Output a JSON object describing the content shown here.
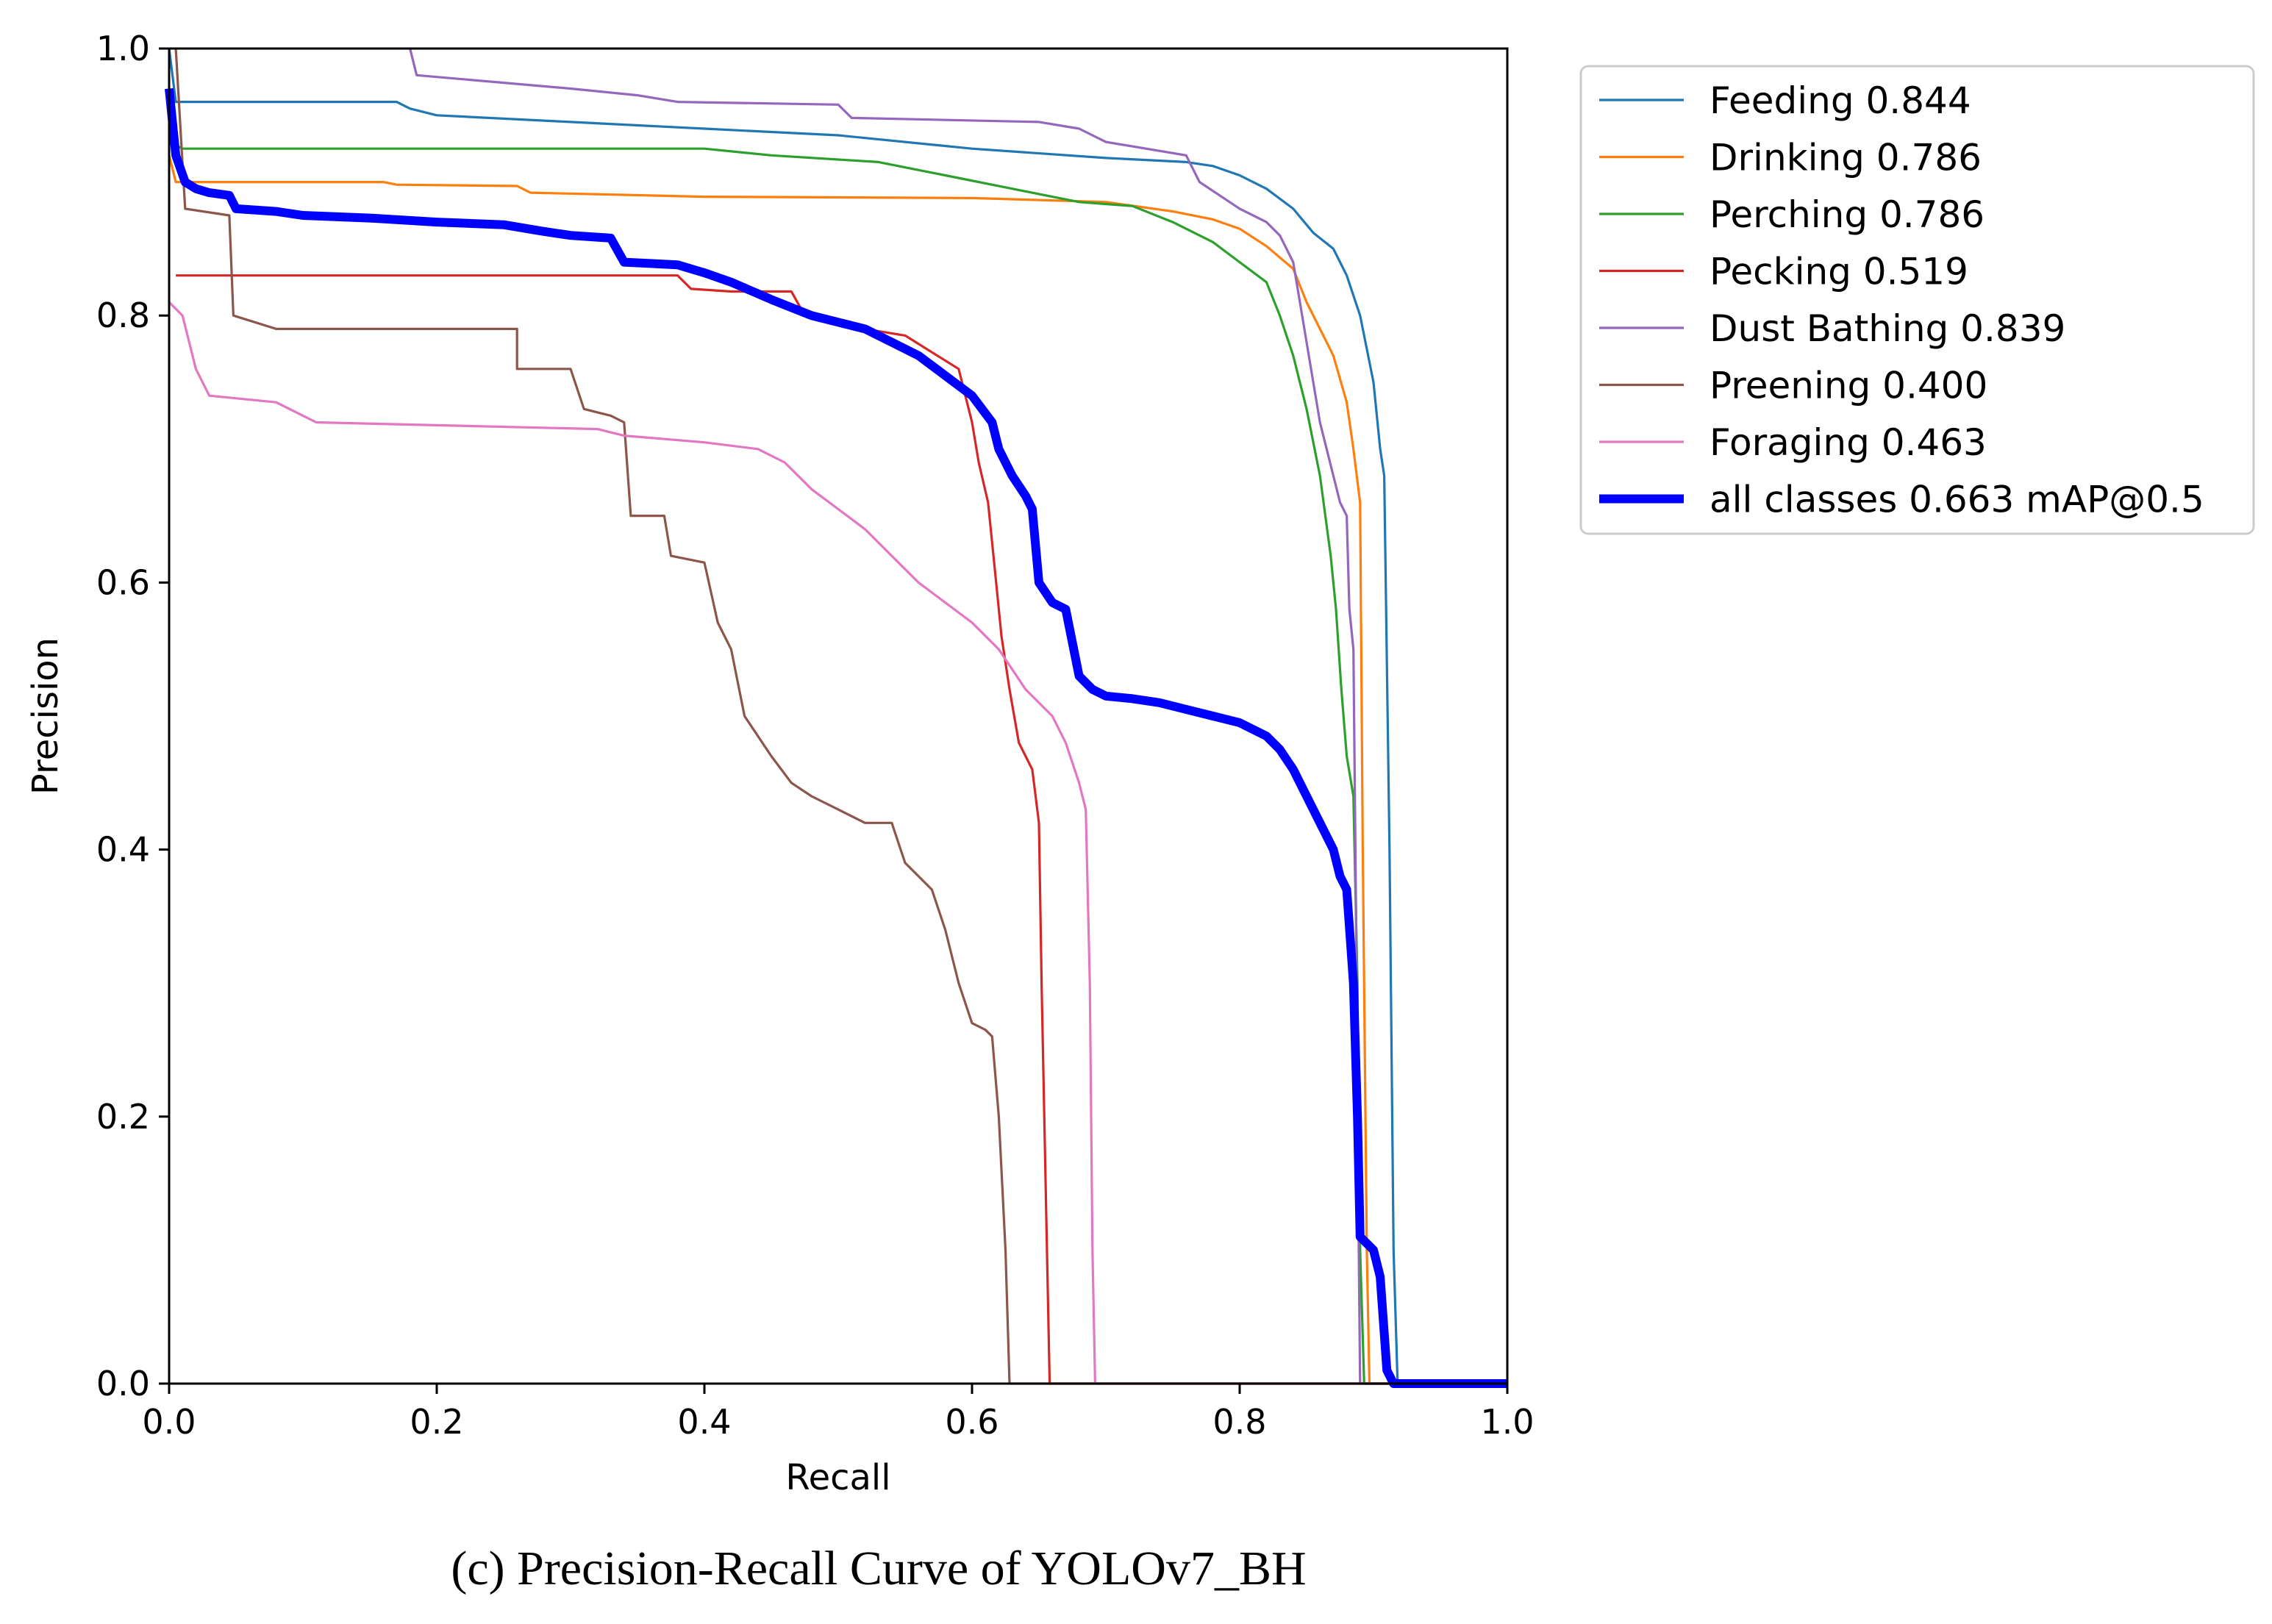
{
  "caption": "(c) Precision-Recall Curve of YOLOv7_BH",
  "chart_data": {
    "type": "line",
    "title": "",
    "xlabel": "Recall",
    "ylabel": "Precision",
    "xlim": [
      0,
      1
    ],
    "ylim": [
      0,
      1
    ],
    "xticks": [
      "0.0",
      "0.2",
      "0.4",
      "0.6",
      "0.8",
      "1.0"
    ],
    "yticks": [
      "0.0",
      "0.2",
      "0.4",
      "0.6",
      "0.8",
      "1.0"
    ],
    "grid": false,
    "legend_position": "outside-top-right",
    "series": [
      {
        "name": "Feeding",
        "score": "0.844",
        "label": "Feeding 0.844",
        "color": "#1f77b4",
        "bold": false,
        "points": [
          [
            0,
            1.0
          ],
          [
            0.005,
            0.96
          ],
          [
            0.17,
            0.96
          ],
          [
            0.18,
            0.955
          ],
          [
            0.2,
            0.95
          ],
          [
            0.3,
            0.945
          ],
          [
            0.4,
            0.94
          ],
          [
            0.5,
            0.935
          ],
          [
            0.6,
            0.925
          ],
          [
            0.7,
            0.918
          ],
          [
            0.76,
            0.915
          ],
          [
            0.78,
            0.912
          ],
          [
            0.8,
            0.905
          ],
          [
            0.82,
            0.895
          ],
          [
            0.84,
            0.88
          ],
          [
            0.855,
            0.862
          ],
          [
            0.87,
            0.85
          ],
          [
            0.88,
            0.83
          ],
          [
            0.89,
            0.8
          ],
          [
            0.9,
            0.75
          ],
          [
            0.905,
            0.7
          ],
          [
            0.908,
            0.68
          ],
          [
            0.912,
            0.4
          ],
          [
            0.915,
            0.1
          ],
          [
            0.918,
            0.0
          ],
          [
            1.0,
            0.0
          ]
        ]
      },
      {
        "name": "Drinking",
        "score": "0.786",
        "label": "Drinking 0.786",
        "color": "#ff7f0e",
        "bold": false,
        "points": [
          [
            0,
            0.92
          ],
          [
            0.005,
            0.9
          ],
          [
            0.16,
            0.9
          ],
          [
            0.17,
            0.898
          ],
          [
            0.26,
            0.897
          ],
          [
            0.27,
            0.892
          ],
          [
            0.4,
            0.889
          ],
          [
            0.6,
            0.888
          ],
          [
            0.7,
            0.885
          ],
          [
            0.75,
            0.878
          ],
          [
            0.78,
            0.872
          ],
          [
            0.8,
            0.865
          ],
          [
            0.82,
            0.852
          ],
          [
            0.84,
            0.835
          ],
          [
            0.85,
            0.81
          ],
          [
            0.86,
            0.79
          ],
          [
            0.87,
            0.77
          ],
          [
            0.88,
            0.735
          ],
          [
            0.885,
            0.7
          ],
          [
            0.89,
            0.66
          ],
          [
            0.892,
            0.4
          ],
          [
            0.895,
            0.1
          ],
          [
            0.897,
            0.0
          ],
          [
            1.0,
            0.0
          ]
        ]
      },
      {
        "name": "Perching",
        "score": "0.786",
        "label": "Perching 0.786",
        "color": "#2ca02c",
        "bold": false,
        "points": [
          [
            0,
            0.93
          ],
          [
            0.01,
            0.925
          ],
          [
            0.4,
            0.925
          ],
          [
            0.45,
            0.92
          ],
          [
            0.53,
            0.915
          ],
          [
            0.58,
            0.905
          ],
          [
            0.63,
            0.895
          ],
          [
            0.68,
            0.885
          ],
          [
            0.72,
            0.882
          ],
          [
            0.75,
            0.87
          ],
          [
            0.78,
            0.855
          ],
          [
            0.8,
            0.84
          ],
          [
            0.82,
            0.825
          ],
          [
            0.83,
            0.8
          ],
          [
            0.84,
            0.77
          ],
          [
            0.85,
            0.73
          ],
          [
            0.86,
            0.68
          ],
          [
            0.868,
            0.62
          ],
          [
            0.872,
            0.58
          ],
          [
            0.876,
            0.52
          ],
          [
            0.88,
            0.47
          ],
          [
            0.885,
            0.44
          ],
          [
            0.888,
            0.3
          ],
          [
            0.89,
            0.1
          ],
          [
            0.893,
            0.0
          ],
          [
            1.0,
            0.0
          ]
        ]
      },
      {
        "name": "Pecking",
        "score": "0.519",
        "label": "Pecking 0.519",
        "color": "#d62728",
        "bold": false,
        "points": [
          [
            0.005,
            0.83
          ],
          [
            0.38,
            0.83
          ],
          [
            0.39,
            0.82
          ],
          [
            0.42,
            0.818
          ],
          [
            0.465,
            0.818
          ],
          [
            0.475,
            0.8
          ],
          [
            0.52,
            0.79
          ],
          [
            0.55,
            0.785
          ],
          [
            0.59,
            0.76
          ],
          [
            0.595,
            0.74
          ],
          [
            0.6,
            0.72
          ],
          [
            0.605,
            0.69
          ],
          [
            0.612,
            0.66
          ],
          [
            0.618,
            0.6
          ],
          [
            0.622,
            0.56
          ],
          [
            0.628,
            0.52
          ],
          [
            0.635,
            0.48
          ],
          [
            0.645,
            0.46
          ],
          [
            0.65,
            0.42
          ],
          [
            0.652,
            0.3
          ],
          [
            0.656,
            0.1
          ],
          [
            0.658,
            0.0
          ],
          [
            1.0,
            0.0
          ]
        ]
      },
      {
        "name": "Dust Bathing",
        "score": "0.839",
        "label": "Dust Bathing 0.839",
        "color": "#9467bd",
        "bold": false,
        "points": [
          [
            0.18,
            1.0
          ],
          [
            0.185,
            0.98
          ],
          [
            0.3,
            0.97
          ],
          [
            0.35,
            0.965
          ],
          [
            0.38,
            0.96
          ],
          [
            0.5,
            0.958
          ],
          [
            0.51,
            0.948
          ],
          [
            0.65,
            0.945
          ],
          [
            0.68,
            0.94
          ],
          [
            0.7,
            0.93
          ],
          [
            0.76,
            0.92
          ],
          [
            0.77,
            0.9
          ],
          [
            0.8,
            0.88
          ],
          [
            0.82,
            0.87
          ],
          [
            0.83,
            0.86
          ],
          [
            0.84,
            0.84
          ],
          [
            0.845,
            0.81
          ],
          [
            0.85,
            0.78
          ],
          [
            0.855,
            0.75
          ],
          [
            0.86,
            0.72
          ],
          [
            0.865,
            0.7
          ],
          [
            0.87,
            0.68
          ],
          [
            0.875,
            0.66
          ],
          [
            0.88,
            0.65
          ],
          [
            0.882,
            0.58
          ],
          [
            0.885,
            0.55
          ],
          [
            0.887,
            0.35
          ],
          [
            0.889,
            0.1
          ],
          [
            0.89,
            0.0
          ],
          [
            1.0,
            0.0
          ]
        ]
      },
      {
        "name": "Preening",
        "score": "0.400",
        "label": "Preening 0.400",
        "color": "#8c564b",
        "bold": false,
        "points": [
          [
            0.005,
            1.0
          ],
          [
            0.012,
            0.88
          ],
          [
            0.045,
            0.875
          ],
          [
            0.048,
            0.8
          ],
          [
            0.08,
            0.79
          ],
          [
            0.26,
            0.79
          ],
          [
            0.26,
            0.76
          ],
          [
            0.3,
            0.76
          ],
          [
            0.31,
            0.73
          ],
          [
            0.33,
            0.725
          ],
          [
            0.34,
            0.72
          ],
          [
            0.345,
            0.65
          ],
          [
            0.37,
            0.65
          ],
          [
            0.375,
            0.62
          ],
          [
            0.4,
            0.615
          ],
          [
            0.41,
            0.57
          ],
          [
            0.42,
            0.55
          ],
          [
            0.43,
            0.5
          ],
          [
            0.45,
            0.47
          ],
          [
            0.465,
            0.45
          ],
          [
            0.48,
            0.44
          ],
          [
            0.5,
            0.43
          ],
          [
            0.52,
            0.42
          ],
          [
            0.54,
            0.42
          ],
          [
            0.55,
            0.39
          ],
          [
            0.56,
            0.38
          ],
          [
            0.57,
            0.37
          ],
          [
            0.58,
            0.34
          ],
          [
            0.59,
            0.3
          ],
          [
            0.6,
            0.27
          ],
          [
            0.61,
            0.265
          ],
          [
            0.615,
            0.26
          ],
          [
            0.62,
            0.2
          ],
          [
            0.625,
            0.1
          ],
          [
            0.628,
            0.0
          ],
          [
            1.0,
            0.0
          ]
        ]
      },
      {
        "name": "Foraging",
        "score": "0.463",
        "label": "Foraging 0.463",
        "color": "#e377c2",
        "bold": false,
        "points": [
          [
            0.0,
            0.81
          ],
          [
            0.01,
            0.8
          ],
          [
            0.02,
            0.76
          ],
          [
            0.03,
            0.74
          ],
          [
            0.08,
            0.735
          ],
          [
            0.1,
            0.725
          ],
          [
            0.11,
            0.72
          ],
          [
            0.32,
            0.715
          ],
          [
            0.34,
            0.71
          ],
          [
            0.4,
            0.705
          ],
          [
            0.44,
            0.7
          ],
          [
            0.46,
            0.69
          ],
          [
            0.48,
            0.67
          ],
          [
            0.5,
            0.655
          ],
          [
            0.52,
            0.64
          ],
          [
            0.54,
            0.62
          ],
          [
            0.56,
            0.6
          ],
          [
            0.58,
            0.585
          ],
          [
            0.6,
            0.57
          ],
          [
            0.62,
            0.55
          ],
          [
            0.64,
            0.52
          ],
          [
            0.66,
            0.5
          ],
          [
            0.67,
            0.48
          ],
          [
            0.68,
            0.45
          ],
          [
            0.685,
            0.43
          ],
          [
            0.688,
            0.3
          ],
          [
            0.69,
            0.1
          ],
          [
            0.692,
            0.0
          ],
          [
            1.0,
            0.0
          ]
        ]
      },
      {
        "name": "all classes",
        "score": "0.663",
        "label": "all classes 0.663 mAP@0.5",
        "color": "#0000ff",
        "bold": true,
        "points": [
          [
            0.0,
            0.97
          ],
          [
            0.005,
            0.92
          ],
          [
            0.012,
            0.9
          ],
          [
            0.02,
            0.895
          ],
          [
            0.03,
            0.892
          ],
          [
            0.045,
            0.89
          ],
          [
            0.05,
            0.88
          ],
          [
            0.08,
            0.878
          ],
          [
            0.1,
            0.875
          ],
          [
            0.15,
            0.873
          ],
          [
            0.2,
            0.87
          ],
          [
            0.25,
            0.868
          ],
          [
            0.28,
            0.863
          ],
          [
            0.3,
            0.86
          ],
          [
            0.33,
            0.858
          ],
          [
            0.34,
            0.84
          ],
          [
            0.38,
            0.838
          ],
          [
            0.4,
            0.832
          ],
          [
            0.42,
            0.825
          ],
          [
            0.45,
            0.812
          ],
          [
            0.48,
            0.8
          ],
          [
            0.5,
            0.795
          ],
          [
            0.52,
            0.79
          ],
          [
            0.54,
            0.78
          ],
          [
            0.56,
            0.77
          ],
          [
            0.58,
            0.755
          ],
          [
            0.6,
            0.74
          ],
          [
            0.615,
            0.72
          ],
          [
            0.62,
            0.7
          ],
          [
            0.63,
            0.68
          ],
          [
            0.64,
            0.665
          ],
          [
            0.645,
            0.655
          ],
          [
            0.65,
            0.6
          ],
          [
            0.66,
            0.585
          ],
          [
            0.67,
            0.58
          ],
          [
            0.68,
            0.53
          ],
          [
            0.69,
            0.52
          ],
          [
            0.7,
            0.515
          ],
          [
            0.72,
            0.513
          ],
          [
            0.74,
            0.51
          ],
          [
            0.76,
            0.505
          ],
          [
            0.78,
            0.5
          ],
          [
            0.8,
            0.495
          ],
          [
            0.82,
            0.485
          ],
          [
            0.83,
            0.475
          ],
          [
            0.84,
            0.46
          ],
          [
            0.85,
            0.44
          ],
          [
            0.86,
            0.42
          ],
          [
            0.87,
            0.4
          ],
          [
            0.875,
            0.38
          ],
          [
            0.88,
            0.37
          ],
          [
            0.885,
            0.3
          ],
          [
            0.888,
            0.2
          ],
          [
            0.89,
            0.11
          ],
          [
            0.9,
            0.1
          ],
          [
            0.905,
            0.08
          ],
          [
            0.91,
            0.01
          ],
          [
            0.915,
            0.0
          ],
          [
            1.0,
            0.0
          ]
        ]
      }
    ]
  }
}
